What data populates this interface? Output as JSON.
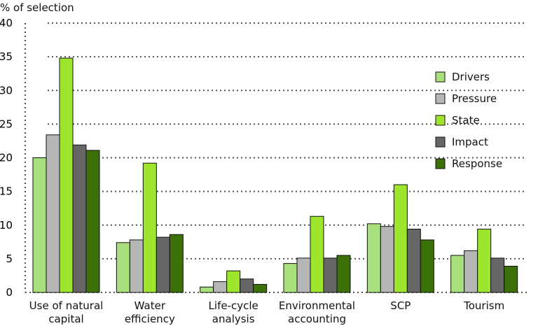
{
  "chart_data": {
    "type": "bar",
    "y_unit_label": "% of selection",
    "ylim": [
      0,
      40
    ],
    "yticks": [
      0,
      5,
      10,
      15,
      20,
      25,
      30,
      35,
      40
    ],
    "grid": true,
    "legend_position": "right",
    "categories": [
      [
        "Use of natural",
        "capital"
      ],
      [
        "Water",
        "efficiency"
      ],
      [
        "Life-cycle",
        "analysis"
      ],
      [
        "Environmental",
        "accounting"
      ],
      [
        "SCP"
      ],
      [
        "Tourism"
      ]
    ],
    "series": [
      {
        "name": "Drivers",
        "color": "#a9e07e",
        "values": [
          20,
          7.4,
          0.8,
          4.3,
          10.2,
          5.5
        ]
      },
      {
        "name": "Pressure",
        "color": "#b6b6b6",
        "values": [
          23.4,
          7.8,
          1.6,
          5.1,
          9.8,
          6.2
        ]
      },
      {
        "name": "State",
        "color": "#9ee52e",
        "values": [
          34.8,
          19.2,
          3.2,
          11.3,
          16,
          9.4
        ]
      },
      {
        "name": "Impact",
        "color": "#666666",
        "values": [
          21.9,
          8.2,
          2,
          5.1,
          9.4,
          5.1
        ]
      },
      {
        "name": "Response",
        "color": "#3c7009",
        "values": [
          21.1,
          8.6,
          1.2,
          5.5,
          7.8,
          3.9
        ]
      }
    ]
  }
}
